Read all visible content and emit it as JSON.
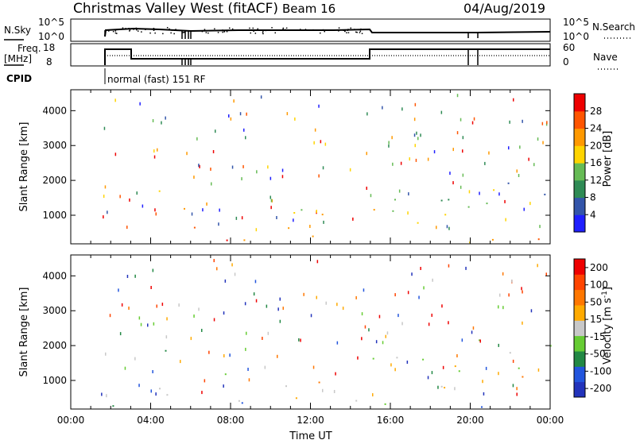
{
  "header": {
    "title": "Christmas Valley West (fitACF)",
    "beam": "Beam 16",
    "date": "04/Aug/2019"
  },
  "status_panels": {
    "nsky_label": "N.Sky",
    "nsearch_label": "N.Search",
    "freq_label_line1": "Freq.",
    "freq_label_line2": "[MHz]",
    "nave_label": "Nave",
    "cpid_label": "CPID",
    "cpid_text": "normal (fast) 151 RF",
    "noise_ticks": [
      "10^5",
      "10^0"
    ],
    "freq_ticks": [
      "18",
      "8"
    ],
    "nave_ticks": [
      "60",
      "0"
    ]
  },
  "chart_data": [
    {
      "type": "heatmap",
      "panel": "power",
      "ylabel": "Slant Range [km]",
      "xlabel": "",
      "xlim": [
        0,
        24
      ],
      "ylim": [
        180,
        4600
      ],
      "yticks": [
        "1000",
        "2000",
        "3000",
        "4000"
      ],
      "colorbar_label": "Power [dB]",
      "colorbar_ticks": [
        "4",
        "8",
        "12",
        "16",
        "20",
        "24",
        "28"
      ],
      "colorbar_range": [
        0,
        30
      ],
      "colors": [
        "#1f1fff",
        "#3355aa",
        "#2f8b55",
        "#66bb55",
        "#ffd400",
        "#ff9900",
        "#ff5500",
        "#ee0000"
      ],
      "scatter_regions": [
        {
          "t": [
            1.6,
            1.9
          ],
          "r": [
            3250,
            3450
          ],
          "level": 0.1
        },
        {
          "t": [
            2.9,
            5.2
          ],
          "r": [
            1500,
            2200
          ],
          "level": 0.55
        },
        {
          "t": [
            4.2,
            12.6
          ],
          "r": [
            500,
            1300
          ],
          "level": 0.65
        },
        {
          "t": [
            1.5,
            24.0
          ],
          "r": [
            190,
            500
          ],
          "level": 0.7
        },
        {
          "t": [
            14.3,
            15.4
          ],
          "r": [
            2800,
            3200
          ],
          "level": 0.45
        },
        {
          "t": [
            13.8,
            19.8
          ],
          "r": [
            700,
            1800
          ],
          "level": 0.5
        },
        {
          "t": [
            18.5,
            24.0
          ],
          "r": [
            1100,
            2300
          ],
          "level": 0.35
        }
      ]
    },
    {
      "type": "heatmap",
      "panel": "velocity",
      "ylabel": "Slant Range [km]",
      "xlabel": "Time UT",
      "xlim": [
        0,
        24
      ],
      "ylim": [
        180,
        4600
      ],
      "xticks": [
        "00:00",
        "04:00",
        "08:00",
        "12:00",
        "16:00",
        "20:00",
        "00:00"
      ],
      "yticks": [
        "1000",
        "2000",
        "3000",
        "4000"
      ],
      "colorbar_label": "Velocity [m s^-1]",
      "colorbar_ticks": [
        "200",
        "100",
        "50",
        "15",
        "-15",
        "-50",
        "-100",
        "-200"
      ],
      "colorbar_range": [
        -250,
        250
      ],
      "colors": [
        "#2233bb",
        "#2255dd",
        "#228844",
        "#66cc33",
        "#c8c8c8",
        "#ffaa00",
        "#ff7700",
        "#ff4400",
        "#ee0000"
      ],
      "scatter_regions": [
        {
          "t": [
            1.6,
            1.9
          ],
          "r": [
            3250,
            3450
          ],
          "level": 0.5
        },
        {
          "t": [
            2.9,
            5.2
          ],
          "r": [
            1500,
            2200
          ],
          "level": 0.5
        },
        {
          "t": [
            4.2,
            12.6
          ],
          "r": [
            500,
            1300
          ],
          "level": 0.55
        },
        {
          "t": [
            1.5,
            24.0
          ],
          "r": [
            190,
            500
          ],
          "level": 0.35
        },
        {
          "t": [
            14.3,
            15.4
          ],
          "r": [
            2800,
            3200
          ],
          "level": 0.75
        },
        {
          "t": [
            13.8,
            19.8
          ],
          "r": [
            700,
            1800
          ],
          "level": 0.5
        },
        {
          "t": [
            18.5,
            24.0
          ],
          "r": [
            1100,
            2300
          ],
          "level": 0.5
        }
      ]
    }
  ]
}
